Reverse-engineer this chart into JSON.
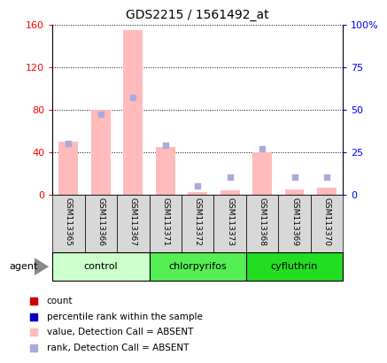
{
  "title": "GDS2215 / 1561492_at",
  "samples": [
    "GSM113365",
    "GSM113366",
    "GSM113367",
    "GSM113371",
    "GSM113372",
    "GSM113373",
    "GSM113368",
    "GSM113369",
    "GSM113370"
  ],
  "absent_value_bars": [
    50,
    80,
    155,
    45,
    2,
    4,
    40,
    5,
    6
  ],
  "absent_rank_dots": [
    30,
    47,
    57,
    29,
    5,
    10,
    27,
    10,
    10
  ],
  "ylim_left": [
    0,
    160
  ],
  "ylim_right": [
    0,
    100
  ],
  "yticks_left": [
    0,
    40,
    80,
    120,
    160
  ],
  "ytick_labels_left": [
    "0",
    "40",
    "80",
    "120",
    "160"
  ],
  "yticks_right": [
    0,
    25,
    50,
    75,
    100
  ],
  "ytick_labels_right": [
    "0",
    "25",
    "50",
    "75",
    "100%"
  ],
  "bar_color": "#ffbbbb",
  "dot_color": "#aaaadd",
  "bg_color": "#ffffff",
  "group_configs": [
    {
      "start": 0,
      "end": 2,
      "color": "#ccffcc",
      "label": "control"
    },
    {
      "start": 3,
      "end": 5,
      "color": "#55ee55",
      "label": "chlorpyrifos"
    },
    {
      "start": 6,
      "end": 8,
      "color": "#22dd22",
      "label": "cyfluthrin"
    }
  ],
  "legend_items": [
    {
      "color": "#cc0000",
      "label": "count"
    },
    {
      "color": "#0000cc",
      "label": "percentile rank within the sample"
    },
    {
      "color": "#ffbbbb",
      "label": "value, Detection Call = ABSENT"
    },
    {
      "color": "#aaaadd",
      "label": "rank, Detection Call = ABSENT"
    }
  ]
}
